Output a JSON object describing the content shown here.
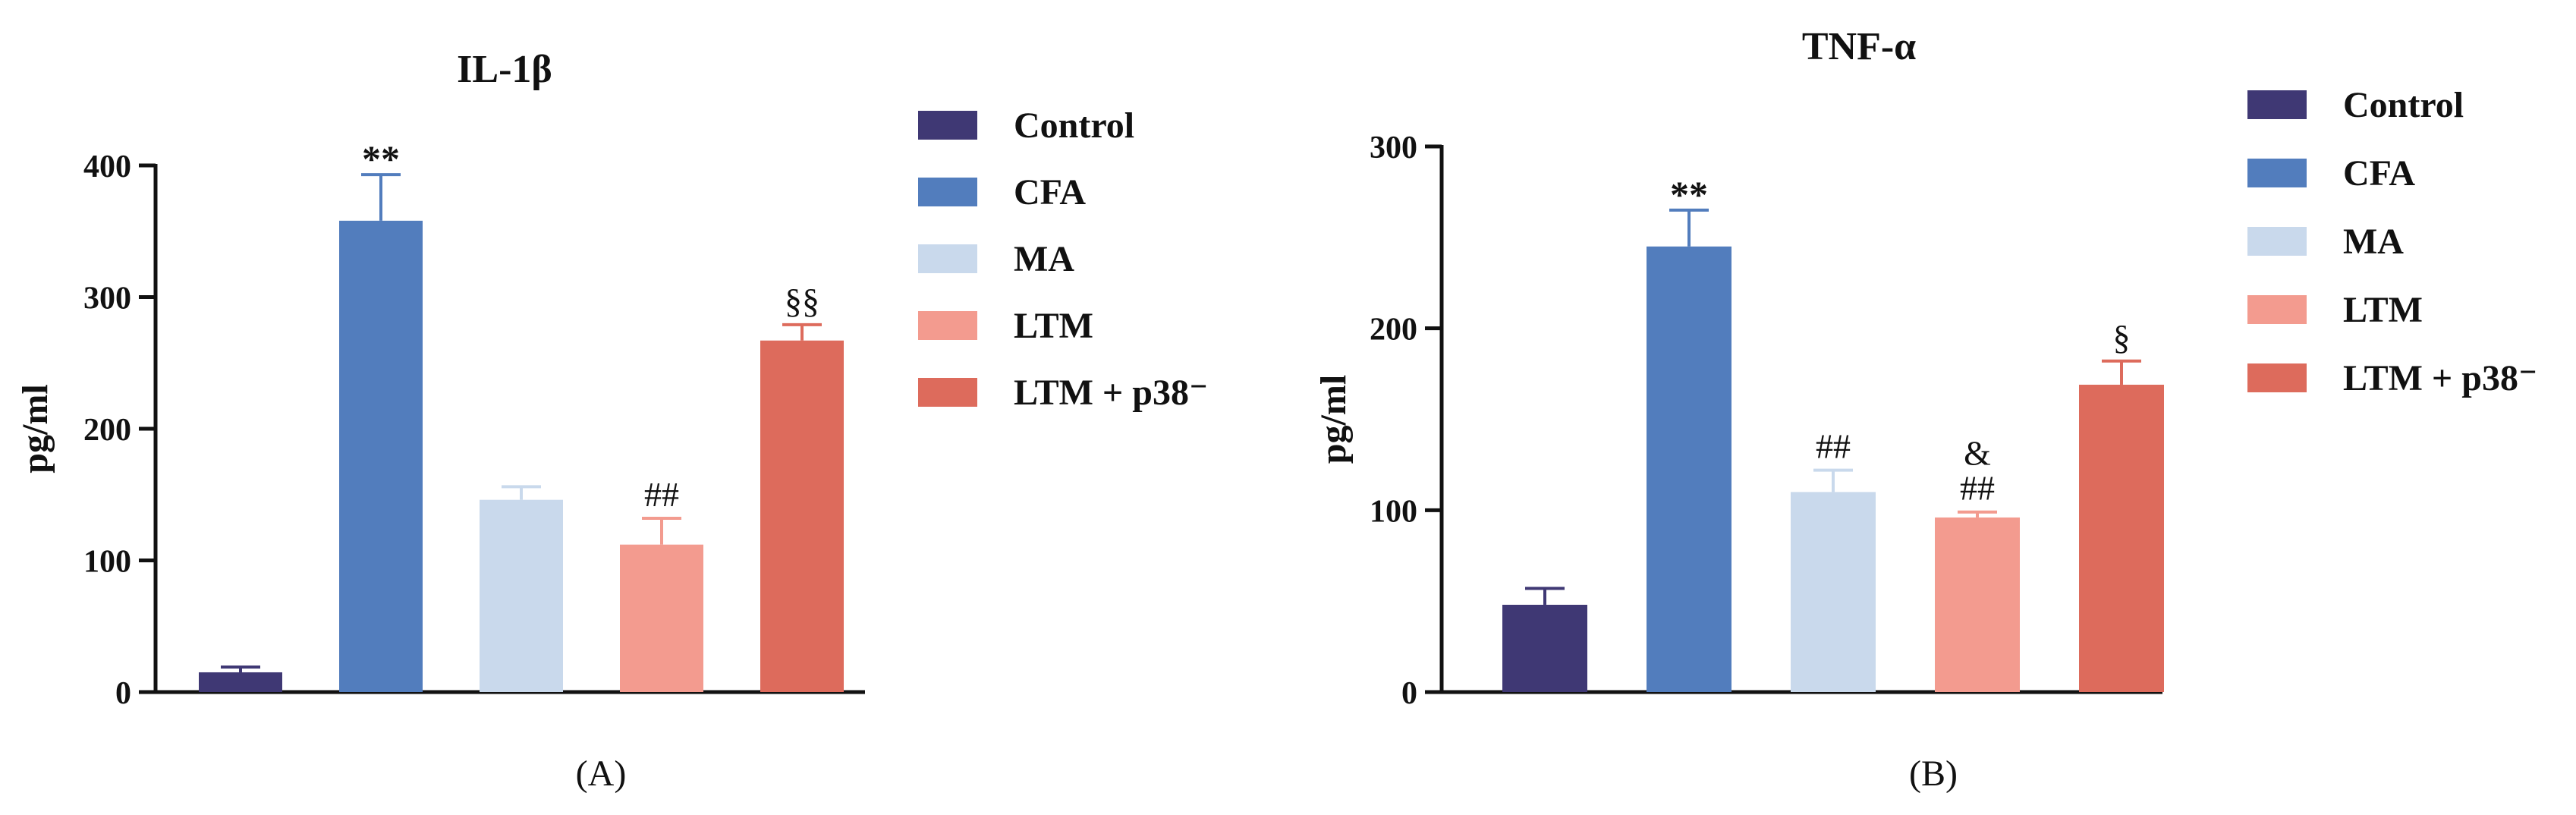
{
  "chart_data": [
    {
      "type": "bar",
      "panel_label": "(A)",
      "title": "IL-1β",
      "xlabel": "",
      "ylabel": "pg/ml",
      "ylim": [
        0,
        400
      ],
      "yticks": [
        0,
        100,
        200,
        300,
        400
      ],
      "grid": false,
      "legend_position": "right",
      "categories": [
        "Control",
        "CFA",
        "MA",
        "LTM",
        "LTM + p38⁻"
      ],
      "values": [
        15,
        358,
        146,
        112,
        267
      ],
      "errors": [
        4,
        35,
        10,
        20,
        12
      ],
      "colors": [
        "#3f3874",
        "#527dbd",
        "#c9d9ec",
        "#f39b8f",
        "#dd6b5c"
      ],
      "annotations": [
        {
          "category": "CFA",
          "lines": [
            "**"
          ]
        },
        {
          "category": "LTM",
          "lines": [
            "##"
          ]
        },
        {
          "category": "LTM + p38⁻",
          "lines": [
            "§§"
          ]
        }
      ]
    },
    {
      "type": "bar",
      "panel_label": "(B)",
      "title": "TNF-α",
      "xlabel": "",
      "ylabel": "pg/ml",
      "ylim": [
        0,
        300
      ],
      "yticks": [
        0,
        100,
        200,
        300
      ],
      "grid": false,
      "legend_position": "right",
      "categories": [
        "Control",
        "CFA",
        "MA",
        "LTM",
        "LTM + p38⁻"
      ],
      "values": [
        48,
        245,
        110,
        96,
        169
      ],
      "errors": [
        9,
        20,
        12,
        3,
        13
      ],
      "colors": [
        "#3f3874",
        "#527dbd",
        "#c9d9ec",
        "#f39b8f",
        "#dd6b5c"
      ],
      "annotations": [
        {
          "category": "CFA",
          "lines": [
            "**"
          ]
        },
        {
          "category": "MA",
          "lines": [
            "##"
          ]
        },
        {
          "category": "LTM",
          "lines": [
            "&",
            "##"
          ]
        },
        {
          "category": "LTM + p38⁻",
          "lines": [
            "§"
          ]
        }
      ]
    }
  ]
}
